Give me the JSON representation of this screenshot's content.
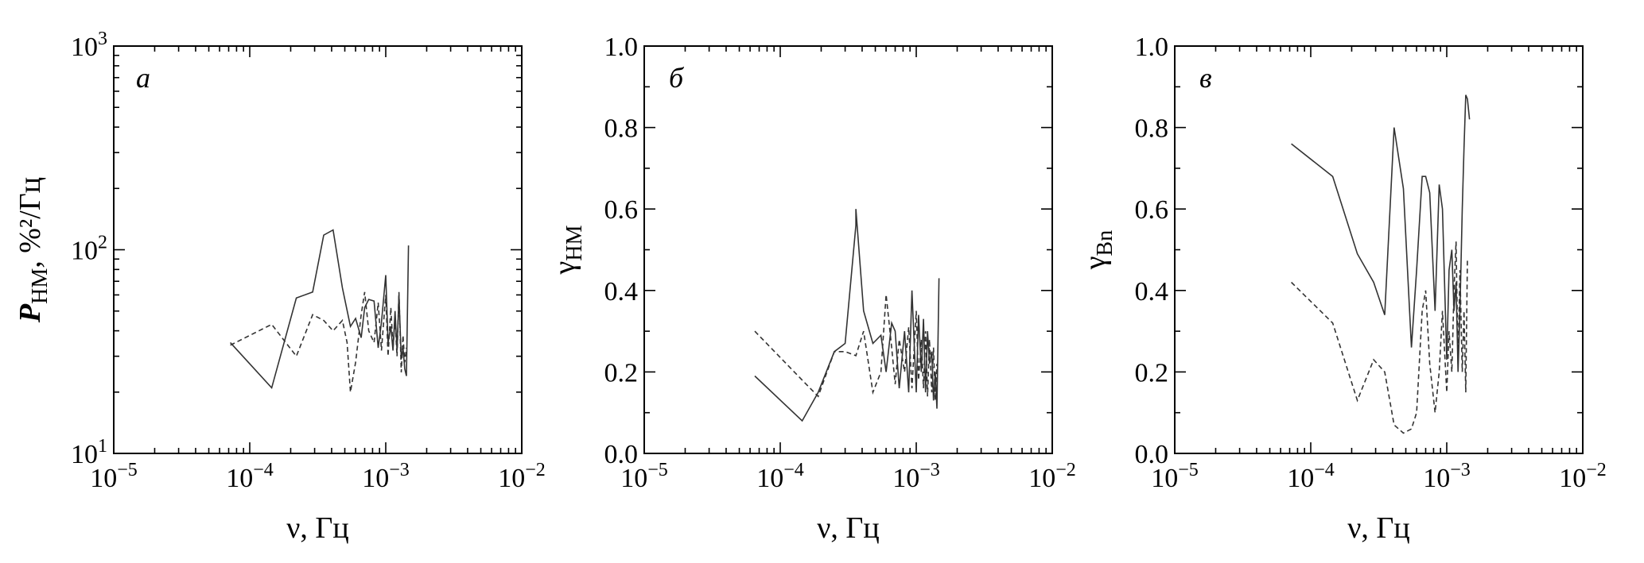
{
  "chart_data": [
    {
      "type": "line",
      "panel_label": "а",
      "xlabel": "ν, Гц",
      "ylabel_main": "P",
      "ylabel_sub": "НМ",
      "ylabel_rest": ", %²/Гц",
      "xscale": "log",
      "yscale": "log",
      "xlim": [
        1e-05,
        0.01
      ],
      "ylim": [
        10,
        1000
      ],
      "x_ticks": [
        {
          "v": 1e-05,
          "base": "10",
          "exp": "−5"
        },
        {
          "v": 0.0001,
          "base": "10",
          "exp": "−4"
        },
        {
          "v": 0.001,
          "base": "10",
          "exp": "−3"
        },
        {
          "v": 0.01,
          "base": "10",
          "exp": "−2"
        }
      ],
      "y_ticks": [
        {
          "v": 10,
          "base": "10",
          "exp": "1"
        },
        {
          "v": 100,
          "base": "10",
          "exp": "2"
        },
        {
          "v": 1000,
          "base": "10",
          "exp": "3"
        }
      ],
      "series": [
        {
          "style": "solid",
          "x": [
            7.2e-05,
            0.000145,
            0.00022,
            0.00029,
            0.00035,
            0.00041,
            0.00048,
            0.00055,
            0.0006,
            0.00066,
            0.0007,
            0.00075,
            0.00082,
            0.00088,
            0.00093,
            0.001,
            0.00104,
            0.00109,
            0.00113,
            0.00117,
            0.00121,
            0.00125,
            0.0013,
            0.00134,
            0.00138,
            0.00142,
            0.00147
          ],
          "y": [
            35,
            21,
            58,
            62,
            118,
            125,
            65,
            42,
            46,
            37,
            52,
            57,
            56,
            33,
            44,
            75,
            35,
            42,
            32,
            50,
            32,
            60,
            29,
            33,
            26,
            24,
            105
          ]
        },
        {
          "style": "dashed",
          "x": [
            7.2e-05,
            0.000145,
            0.00022,
            0.00029,
            0.00035,
            0.00041,
            0.00048,
            0.00052,
            0.00055,
            0.0006,
            0.00066,
            0.0007,
            0.00075,
            0.00082,
            0.00088,
            0.00093,
            0.001,
            0.00104,
            0.00109,
            0.00113,
            0.00117,
            0.00121,
            0.00125,
            0.0013,
            0.00134,
            0.00138,
            0.00142
          ],
          "y": [
            34,
            43,
            30,
            48,
            45,
            40,
            45,
            35,
            20,
            28,
            48,
            62,
            40,
            35,
            55,
            32,
            60,
            30,
            52,
            33,
            45,
            30,
            62,
            25,
            38,
            28,
            33
          ]
        }
      ]
    },
    {
      "type": "line",
      "panel_label": "б",
      "xlabel": "ν, Гц",
      "ylabel_main": "γ",
      "ylabel_sub": "НМ",
      "ylabel_rest": "",
      "xscale": "log",
      "yscale": "linear",
      "xlim": [
        1e-05,
        0.01
      ],
      "ylim": [
        0,
        1
      ],
      "x_ticks": [
        {
          "v": 1e-05,
          "base": "10",
          "exp": "−5"
        },
        {
          "v": 0.0001,
          "base": "10",
          "exp": "−4"
        },
        {
          "v": 0.001,
          "base": "10",
          "exp": "−3"
        },
        {
          "v": 0.01,
          "base": "10",
          "exp": "−2"
        }
      ],
      "y_ticks": [
        {
          "v": 0,
          "base": "0.0",
          "exp": ""
        },
        {
          "v": 0.2,
          "base": "0.2",
          "exp": ""
        },
        {
          "v": 0.4,
          "base": "0.4",
          "exp": ""
        },
        {
          "v": 0.6,
          "base": "0.6",
          "exp": ""
        },
        {
          "v": 0.8,
          "base": "0.8",
          "exp": ""
        },
        {
          "v": 1,
          "base": "1.0",
          "exp": ""
        }
      ],
      "series": [
        {
          "style": "solid",
          "x": [
            6.5e-05,
            0.000145,
            0.00019,
            0.00025,
            0.0003,
            0.00036,
            0.00036,
            0.00041,
            0.00048,
            0.00055,
            0.0006,
            0.00066,
            0.0007,
            0.00075,
            0.00082,
            0.00088,
            0.00093,
            0.001,
            0.00104,
            0.00109,
            0.00113,
            0.00117,
            0.00121,
            0.00125,
            0.0013,
            0.00134,
            0.00138,
            0.00142,
            0.00147
          ],
          "y": [
            0.19,
            0.08,
            0.15,
            0.25,
            0.27,
            0.56,
            0.6,
            0.35,
            0.27,
            0.29,
            0.2,
            0.32,
            0.3,
            0.16,
            0.3,
            0.15,
            0.4,
            0.15,
            0.34,
            0.2,
            0.33,
            0.15,
            0.3,
            0.22,
            0.25,
            0.13,
            0.2,
            0.11,
            0.43
          ]
        },
        {
          "style": "dashed",
          "x": [
            6.5e-05,
            0.000145,
            0.00019,
            0.00025,
            0.0003,
            0.00036,
            0.00041,
            0.00048,
            0.00055,
            0.0006,
            0.00066,
            0.0007,
            0.00075,
            0.00082,
            0.00088,
            0.00093,
            0.001,
            0.00104,
            0.00109,
            0.00113,
            0.00117,
            0.00121,
            0.00125,
            0.0013,
            0.00134,
            0.00138,
            0.00142
          ],
          "y": [
            0.3,
            0.18,
            0.14,
            0.25,
            0.25,
            0.24,
            0.3,
            0.15,
            0.2,
            0.39,
            0.26,
            0.17,
            0.28,
            0.2,
            0.31,
            0.16,
            0.35,
            0.18,
            0.28,
            0.16,
            0.3,
            0.14,
            0.28,
            0.15,
            0.26,
            0.13,
            0.22
          ]
        }
      ]
    },
    {
      "type": "line",
      "panel_label": "в",
      "xlabel": "ν, Гц",
      "ylabel_main": "γ",
      "ylabel_sub": "Bn",
      "ylabel_rest": "",
      "xscale": "log",
      "yscale": "linear",
      "xlim": [
        1e-05,
        0.01
      ],
      "ylim": [
        0,
        1
      ],
      "x_ticks": [
        {
          "v": 1e-05,
          "base": "10",
          "exp": "−5"
        },
        {
          "v": 0.0001,
          "base": "10",
          "exp": "−4"
        },
        {
          "v": 0.001,
          "base": "10",
          "exp": "−3"
        },
        {
          "v": 0.01,
          "base": "10",
          "exp": "−2"
        }
      ],
      "y_ticks": [
        {
          "v": 0,
          "base": "0.0",
          "exp": ""
        },
        {
          "v": 0.2,
          "base": "0.2",
          "exp": ""
        },
        {
          "v": 0.4,
          "base": "0.4",
          "exp": ""
        },
        {
          "v": 0.6,
          "base": "0.6",
          "exp": ""
        },
        {
          "v": 0.8,
          "base": "0.8",
          "exp": ""
        },
        {
          "v": 1,
          "base": "1.0",
          "exp": ""
        }
      ],
      "series": [
        {
          "style": "solid",
          "x": [
            7.2e-05,
            0.000145,
            0.00022,
            0.00029,
            0.00035,
            0.00041,
            0.00048,
            0.00055,
            0.0006,
            0.00066,
            0.0007,
            0.00075,
            0.00082,
            0.00088,
            0.00093,
            0.001,
            0.00104,
            0.00109,
            0.00113,
            0.00117,
            0.00121,
            0.00125,
            0.0013,
            0.00134,
            0.00138,
            0.00142,
            0.00147
          ],
          "y": [
            0.76,
            0.68,
            0.49,
            0.42,
            0.34,
            0.8,
            0.65,
            0.26,
            0.45,
            0.68,
            0.68,
            0.64,
            0.35,
            0.66,
            0.6,
            0.23,
            0.45,
            0.5,
            0.35,
            0.42,
            0.2,
            0.35,
            0.6,
            0.75,
            0.88,
            0.87,
            0.82
          ]
        },
        {
          "style": "dashed",
          "x": [
            7.2e-05,
            0.000145,
            0.00022,
            0.00029,
            0.00035,
            0.00041,
            0.00048,
            0.00055,
            0.0006,
            0.00066,
            0.0007,
            0.00075,
            0.00082,
            0.00088,
            0.00093,
            0.001,
            0.00104,
            0.00109,
            0.00113,
            0.00117,
            0.00121,
            0.00125,
            0.0013,
            0.00134,
            0.00138,
            0.00142
          ],
          "y": [
            0.42,
            0.32,
            0.13,
            0.23,
            0.2,
            0.07,
            0.05,
            0.06,
            0.1,
            0.35,
            0.4,
            0.22,
            0.1,
            0.2,
            0.35,
            0.15,
            0.3,
            0.2,
            0.4,
            0.52,
            0.22,
            0.45,
            0.2,
            0.35,
            0.15,
            0.48
          ]
        }
      ]
    }
  ]
}
